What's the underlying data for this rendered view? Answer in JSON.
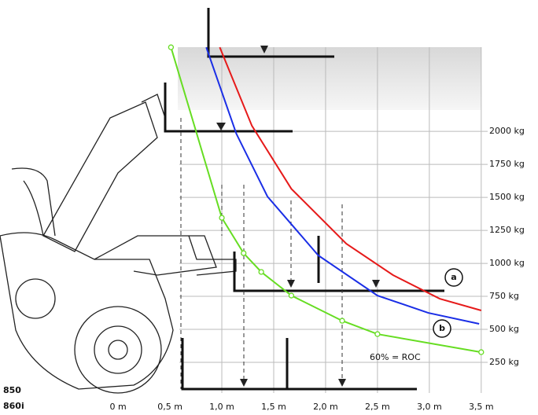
{
  "chart_data": {
    "type": "line",
    "xlim": [
      -1.1,
      3.6
    ],
    "ylim": [
      0,
      2900
    ],
    "xticks": [
      {
        "value": 0,
        "label": "0 m"
      },
      {
        "value": 0.5,
        "label": "0,5 m"
      },
      {
        "value": 1,
        "label": "1,0 m"
      },
      {
        "value": 1.5,
        "label": "1,5 m"
      },
      {
        "value": 2,
        "label": "2,0 m"
      },
      {
        "value": 2.5,
        "label": "2,5 m"
      },
      {
        "value": 3,
        "label": "3,0 m"
      },
      {
        "value": 3.5,
        "label": "3,5 m"
      }
    ],
    "yticks": [
      {
        "value": 250,
        "label": "250 kg"
      },
      {
        "value": 500,
        "label": "500 kg"
      },
      {
        "value": 750,
        "label": "750 kg"
      },
      {
        "value": 1000,
        "label": "1000 kg"
      },
      {
        "value": 1250,
        "label": "1250 kg"
      },
      {
        "value": 1500,
        "label": "1500 kg"
      },
      {
        "value": 1750,
        "label": "1750 kg"
      },
      {
        "value": 2000,
        "label": "2000 kg"
      }
    ],
    "grid": true,
    "series": [
      {
        "name": "60% = ROC",
        "color": "#66dd22",
        "markers": true,
        "x": [
          0.51,
          1.0,
          1.21,
          1.38,
          1.67,
          2.16,
          2.5,
          3.5
        ],
        "values": [
          2637,
          1345,
          1077,
          935,
          756,
          565,
          464,
          327
        ]
      },
      {
        "name": "b",
        "color": "#1a2ee6",
        "markers": false,
        "x": [
          0.85,
          1.14,
          1.44,
          1.93,
          2.5,
          2.99,
          3.48
        ],
        "values": [
          2637,
          1982,
          1506,
          1060,
          756,
          625,
          542
        ]
      },
      {
        "name": "a",
        "color": "#e61a1a",
        "markers": false,
        "x": [
          0.98,
          1.29,
          1.67,
          2.2,
          2.65,
          3.1,
          3.5
        ],
        "values": [
          2637,
          2042,
          1565,
          1149,
          911,
          732,
          643
        ]
      }
    ],
    "models": [
      "850",
      "860i"
    ]
  }
}
